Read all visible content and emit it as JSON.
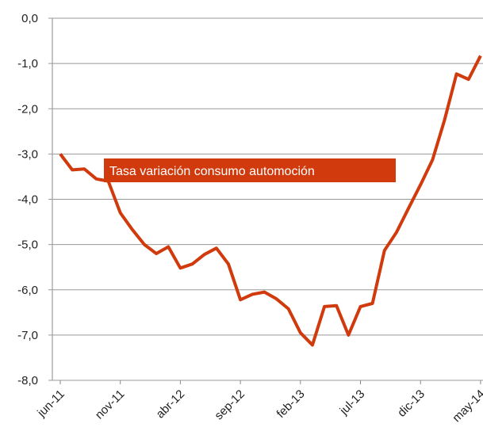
{
  "chart_data": {
    "type": "line",
    "categories": [
      "jun-11",
      null,
      null,
      null,
      null,
      "nov-11",
      null,
      null,
      null,
      null,
      "abr-12",
      null,
      null,
      null,
      null,
      "sep-12",
      null,
      null,
      null,
      null,
      "feb-13",
      null,
      null,
      null,
      null,
      "jul-13",
      null,
      null,
      null,
      null,
      "dic-13",
      null,
      null,
      null,
      null,
      "may-14"
    ],
    "series": [
      {
        "name": "Tasa variación consumo automoción",
        "color": "#d03a0c",
        "values": [
          -3.0,
          -3.35,
          -3.33,
          -3.55,
          -3.6,
          -4.3,
          -4.67,
          -5.0,
          -5.2,
          -5.05,
          -5.52,
          -5.43,
          -5.22,
          -5.08,
          -5.43,
          -6.22,
          -6.1,
          -6.05,
          -6.2,
          -6.42,
          -6.95,
          -7.22,
          -6.37,
          -6.35,
          -7.0,
          -6.37,
          -6.3,
          -5.13,
          -4.73,
          -4.2,
          -3.68,
          -3.13,
          -2.25,
          -1.23,
          -1.35,
          -0.83
        ]
      }
    ],
    "ylim": [
      -8,
      0
    ],
    "yticks": [
      {
        "value": 0,
        "label": "0,0"
      },
      {
        "value": -1,
        "label": "-1,0"
      },
      {
        "value": -2,
        "label": "-2,0"
      },
      {
        "value": -3,
        "label": "-3,0"
      },
      {
        "value": -4,
        "label": "-4,0"
      },
      {
        "value": -5,
        "label": "-5,0"
      },
      {
        "value": -6,
        "label": "-6,0"
      },
      {
        "value": -7,
        "label": "-7,0"
      },
      {
        "value": -8,
        "label": "-8,0"
      }
    ],
    "grid": true
  }
}
